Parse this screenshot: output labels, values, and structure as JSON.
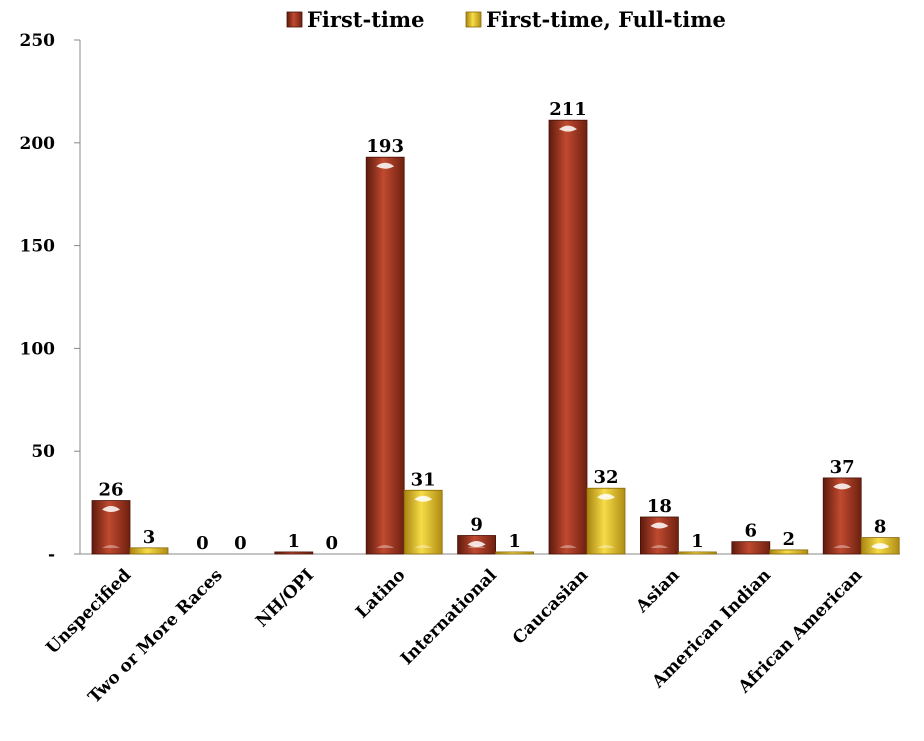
{
  "chart_data": {
    "type": "bar",
    "categories": [
      "Unspecified",
      "Two or More Races",
      "NH/OPI",
      "Latino",
      "International",
      "Caucasian",
      "Asian",
      "American Indian",
      "African American"
    ],
    "series": [
      {
        "name": "First-time",
        "values": [
          26,
          0,
          1,
          193,
          9,
          211,
          18,
          6,
          37
        ],
        "color": "#a0351f"
      },
      {
        "name": "First-time, Full-time",
        "values": [
          3,
          0,
          0,
          31,
          1,
          32,
          1,
          2,
          8
        ],
        "color": "#e6c223"
      }
    ],
    "yticks": [
      {
        "value": 0,
        "label": "-"
      },
      {
        "value": 50,
        "label": "50"
      },
      {
        "value": 100,
        "label": "100"
      },
      {
        "value": 150,
        "label": "150"
      },
      {
        "value": 200,
        "label": "200"
      },
      {
        "value": 250,
        "label": "250"
      }
    ],
    "ylim": [
      0,
      250
    ],
    "grid": false,
    "legend_position": "top",
    "title": "",
    "xlabel": "",
    "ylabel": ""
  }
}
